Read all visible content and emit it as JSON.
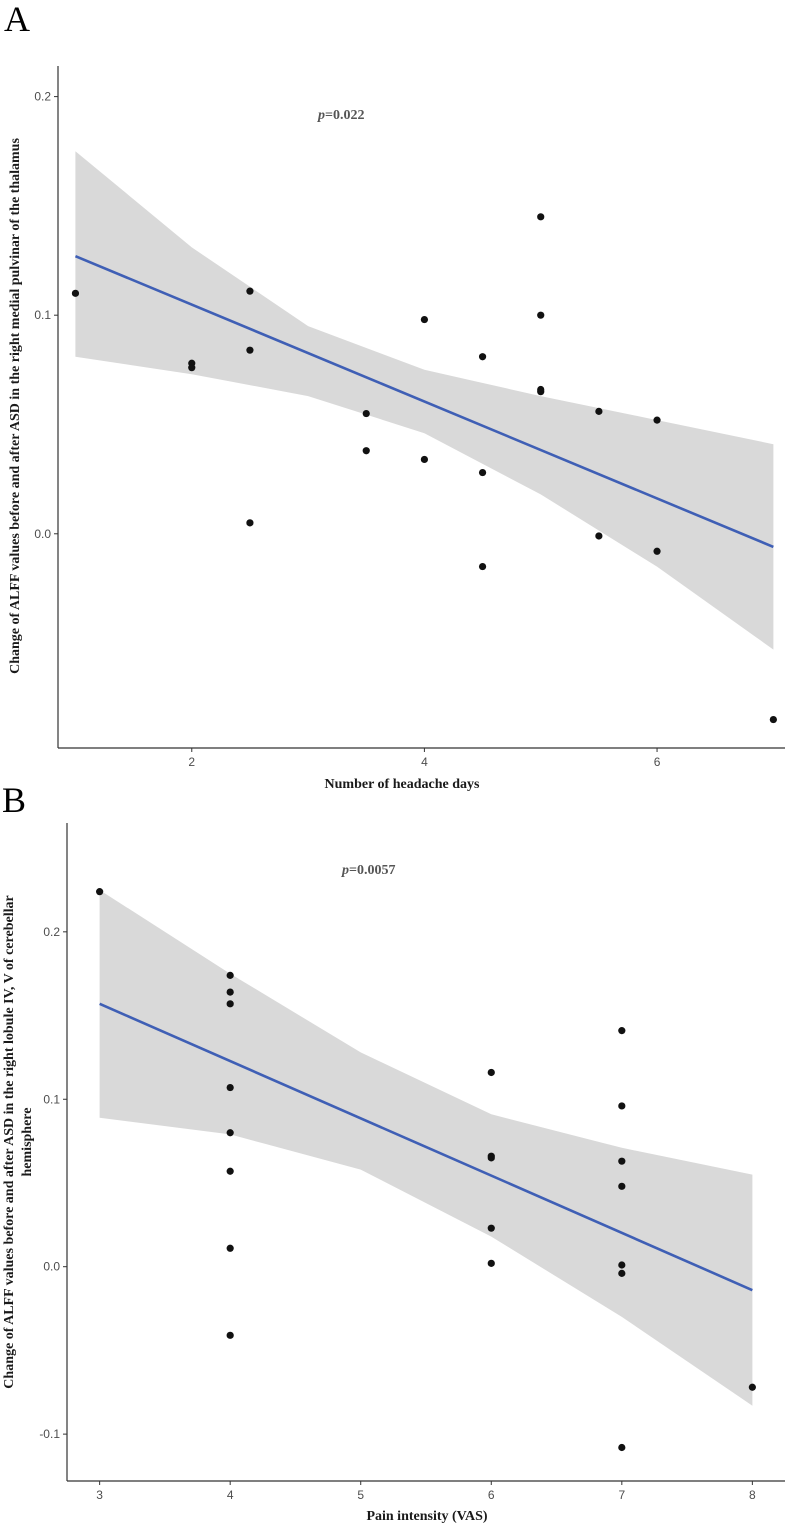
{
  "colors": {
    "points": "#111111",
    "fit_line": "#3f5fb5",
    "band": "#d9d9d9",
    "axis": "#333333"
  },
  "chart_data": [
    {
      "type": "scatter",
      "panel": "A",
      "title": "",
      "annotation_p": "p",
      "annotation_value": "=0.022",
      "xlabel": "Number of headache days",
      "ylabel": "Change of ALFF values before and after ASD in the right medial pulvinar of the thalamus",
      "xlim": [
        0.85,
        7.1
      ],
      "ylim": [
        -0.098,
        0.214
      ],
      "xticks": [
        2,
        4,
        6
      ],
      "yticks": [
        0.0,
        0.1,
        0.2
      ],
      "xtick_labels": [
        "2",
        "4",
        "6"
      ],
      "ytick_labels": [
        "0.0",
        "0.1",
        "0.2"
      ],
      "points": [
        [
          1,
          0.11
        ],
        [
          2,
          0.078
        ],
        [
          2,
          0.076
        ],
        [
          2.5,
          0.111
        ],
        [
          2.5,
          0.084
        ],
        [
          2.5,
          0.005
        ],
        [
          3.5,
          0.055
        ],
        [
          3.5,
          0.038
        ],
        [
          4,
          0.098
        ],
        [
          4,
          0.034
        ],
        [
          4.5,
          0.081
        ],
        [
          4.5,
          0.028
        ],
        [
          4.5,
          -0.015
        ],
        [
          5,
          0.145
        ],
        [
          5,
          0.1
        ],
        [
          5,
          0.066
        ],
        [
          5,
          0.065
        ],
        [
          5.5,
          0.056
        ],
        [
          5.5,
          -0.001
        ],
        [
          6,
          0.052
        ],
        [
          6,
          -0.008
        ],
        [
          7,
          -0.085
        ]
      ],
      "fit_line": {
        "x": [
          1,
          7
        ],
        "y": [
          0.127,
          -0.006
        ]
      },
      "ci_band": {
        "x": [
          1,
          2,
          3,
          4,
          5,
          6,
          7
        ],
        "upper": [
          0.175,
          0.131,
          0.095,
          0.075,
          0.063,
          0.052,
          0.041
        ],
        "lower": [
          0.081,
          0.073,
          0.063,
          0.046,
          0.018,
          -0.015,
          -0.053
        ]
      }
    },
    {
      "type": "scatter",
      "panel": "B",
      "title": "",
      "annotation_p": "p",
      "annotation_value": "=0.0057",
      "xlabel": "Pain intensity (VAS)",
      "ylabel_lines": [
        "Change of ALFF values before and after ASD in the right lobule IV, V of cerebellar",
        "hemisphere"
      ],
      "xlim": [
        2.75,
        8.25
      ],
      "ylim": [
        -0.128,
        0.265
      ],
      "xticks": [
        3,
        4,
        5,
        6,
        7,
        8
      ],
      "yticks": [
        -0.1,
        0.0,
        0.1,
        0.2
      ],
      "xtick_labels": [
        "3",
        "4",
        "5",
        "6",
        "7",
        "8"
      ],
      "ytick_labels": [
        "-0.1",
        "0.0",
        "0.1",
        "0.2"
      ],
      "points": [
        [
          3,
          0.224
        ],
        [
          4,
          0.174
        ],
        [
          4,
          0.164
        ],
        [
          4,
          0.157
        ],
        [
          4,
          0.107
        ],
        [
          4,
          0.08
        ],
        [
          4,
          0.057
        ],
        [
          4,
          0.011
        ],
        [
          4,
          -0.041
        ],
        [
          6,
          0.116
        ],
        [
          6,
          0.066
        ],
        [
          6,
          0.065
        ],
        [
          6,
          0.023
        ],
        [
          6,
          0.002
        ],
        [
          7,
          0.141
        ],
        [
          7,
          0.096
        ],
        [
          7,
          0.063
        ],
        [
          7,
          0.048
        ],
        [
          7,
          0.001
        ],
        [
          7,
          -0.004
        ],
        [
          7,
          -0.108
        ],
        [
          8,
          -0.072
        ]
      ],
      "fit_line": {
        "x": [
          3,
          8
        ],
        "y": [
          0.157,
          -0.014
        ]
      },
      "ci_band": {
        "x": [
          3,
          4,
          5,
          6,
          7,
          8
        ],
        "upper": [
          0.225,
          0.175,
          0.128,
          0.091,
          0.071,
          0.055
        ],
        "lower": [
          0.089,
          0.079,
          0.058,
          0.018,
          -0.03,
          -0.083
        ]
      }
    }
  ]
}
